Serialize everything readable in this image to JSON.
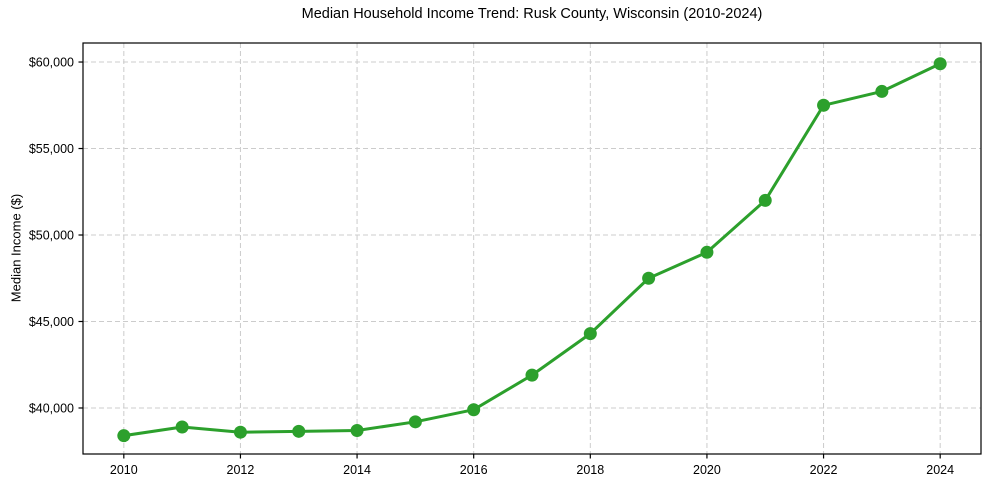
{
  "chart_data": {
    "type": "line",
    "title": "Median Household Income Trend: Rusk County, Wisconsin (2010-2024)",
    "xlabel": "",
    "ylabel": "Median Income ($)",
    "x": [
      2010,
      2011,
      2012,
      2013,
      2014,
      2015,
      2016,
      2017,
      2018,
      2019,
      2020,
      2021,
      2022,
      2023,
      2024
    ],
    "series": [
      {
        "color": "#2ca02c",
        "marker": "circle",
        "values": [
          38400,
          38900,
          38600,
          38650,
          38700,
          39200,
          39900,
          41900,
          44300,
          47500,
          49000,
          52000,
          57500,
          58300,
          59900
        ]
      }
    ],
    "x_ticks": [
      2010,
      2012,
      2014,
      2016,
      2018,
      2020,
      2022,
      2024
    ],
    "x_tick_labels": [
      "2010",
      "2012",
      "2014",
      "2016",
      "2018",
      "2020",
      "2022",
      "2024"
    ],
    "y_ticks": [
      40000,
      45000,
      50000,
      55000,
      60000
    ],
    "y_tick_labels": [
      "$40,000",
      "$45,000",
      "$50,000",
      "$55,000",
      "$60,000"
    ],
    "xlim": [
      2009.3,
      2024.7
    ],
    "ylim": [
      37340,
      61100
    ],
    "grid": true,
    "grid_style": "dashed",
    "grid_color": "#cccccc",
    "spine_color": "#000000",
    "background": "#ffffff",
    "legend_position": "none"
  }
}
